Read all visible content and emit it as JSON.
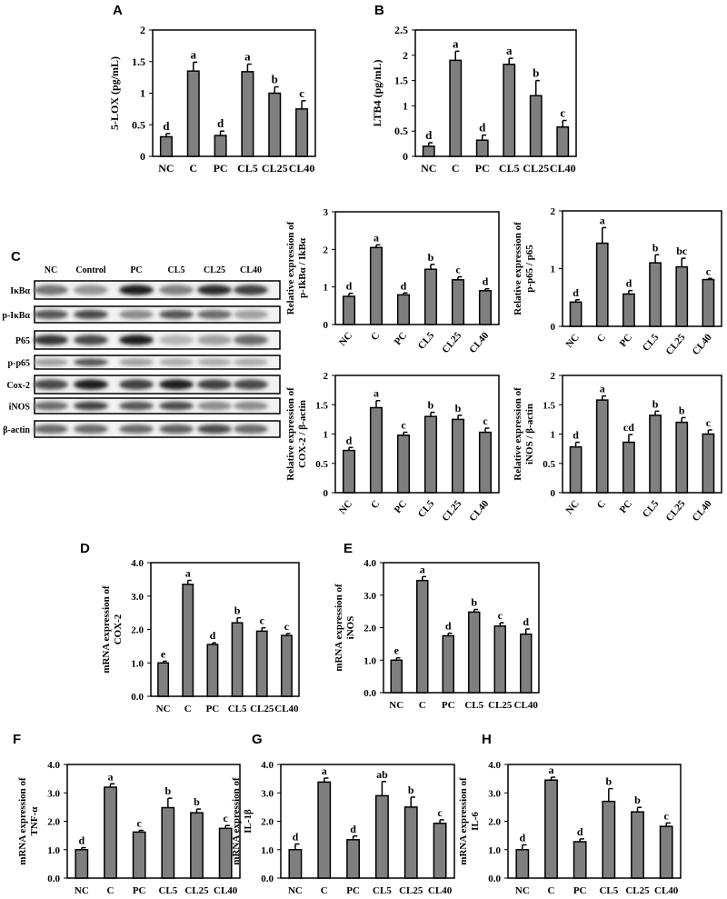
{
  "chart_data": [
    {
      "id": "A",
      "type": "bar",
      "panel_label": "A",
      "title": "",
      "ylabel": [
        "5-LOX (pg/mL)"
      ],
      "ylim": [
        0,
        2
      ],
      "yticks": [
        "0",
        "0.5",
        "1",
        "1.5",
        "2"
      ],
      "categories": [
        "NC",
        "C",
        "PC",
        "CL5",
        "CL25",
        "CL40"
      ],
      "values": [
        0.31,
        1.35,
        0.33,
        1.34,
        1.0,
        0.75
      ],
      "errors": [
        0.05,
        0.14,
        0.07,
        0.12,
        0.1,
        0.13
      ],
      "letters": [
        "d",
        "a",
        "d",
        "a",
        "b",
        "c"
      ]
    },
    {
      "id": "B",
      "type": "bar",
      "panel_label": "B",
      "title": "",
      "ylabel": [
        "LTB4 (pg/mL)"
      ],
      "ylim": [
        0,
        2.5
      ],
      "yticks": [
        "0",
        "0.5",
        "1",
        "1.5",
        "2",
        "2.5"
      ],
      "categories": [
        "NC",
        "C",
        "PC",
        "CL5",
        "CL25",
        "CL40"
      ],
      "values": [
        0.2,
        1.9,
        0.32,
        1.82,
        1.2,
        0.58
      ],
      "errors": [
        0.07,
        0.18,
        0.1,
        0.12,
        0.3,
        0.13
      ],
      "letters": [
        "d",
        "a",
        "d",
        "a",
        "b",
        "c"
      ]
    },
    {
      "id": "C1",
      "type": "bar",
      "panel_label": "",
      "ylabel": [
        "Relative expression of",
        "p-IkBα / IkBα"
      ],
      "ylim": [
        0,
        3
      ],
      "yticks": [
        "0",
        "1",
        "2",
        "3"
      ],
      "categories": [
        "NC",
        "C",
        "PC",
        "CL5",
        "CL25",
        "CL40"
      ],
      "values": [
        0.75,
        2.05,
        0.79,
        1.47,
        1.19,
        0.9
      ],
      "errors": [
        0.08,
        0.07,
        0.05,
        0.13,
        0.08,
        0.05
      ],
      "letters": [
        "d",
        "a",
        "d",
        "b",
        "c",
        "d"
      ]
    },
    {
      "id": "C2",
      "type": "bar",
      "panel_label": "",
      "ylabel": [
        "Relative expression of",
        "p-p65 / p65"
      ],
      "ylim": [
        0,
        2
      ],
      "yticks": [
        "0",
        "1",
        "2"
      ],
      "categories": [
        "NC",
        "C",
        "PC",
        "CL5",
        "CL25",
        "CL40"
      ],
      "values": [
        0.42,
        1.44,
        0.56,
        1.1,
        1.03,
        0.81
      ],
      "errors": [
        0.04,
        0.27,
        0.06,
        0.14,
        0.15,
        0.02
      ],
      "letters": [
        "d",
        "a",
        "d",
        "b",
        "bc",
        "c"
      ]
    },
    {
      "id": "C3",
      "type": "bar",
      "panel_label": "",
      "ylabel": [
        "Relative expression of",
        "COX-2 / β-actin"
      ],
      "ylim": [
        0,
        2
      ],
      "yticks": [
        "0",
        "0.5",
        "1",
        "1.5",
        "2"
      ],
      "categories": [
        "NC",
        "C",
        "PC",
        "CL5",
        "CL25",
        "CL40"
      ],
      "values": [
        0.72,
        1.45,
        0.98,
        1.3,
        1.25,
        1.03
      ],
      "errors": [
        0.05,
        0.12,
        0.05,
        0.07,
        0.07,
        0.07
      ],
      "letters": [
        "d",
        "a",
        "c",
        "b",
        "b",
        "c"
      ]
    },
    {
      "id": "C4",
      "type": "bar",
      "panel_label": "",
      "ylabel": [
        "Relative expression of",
        "iNOS / β-actin"
      ],
      "ylim": [
        0,
        2
      ],
      "yticks": [
        "0",
        "0.5",
        "1",
        "1.5",
        "2"
      ],
      "categories": [
        "NC",
        "C",
        "PC",
        "CL5",
        "CL25",
        "CL40"
      ],
      "values": [
        0.78,
        1.58,
        0.86,
        1.32,
        1.2,
        1.0
      ],
      "errors": [
        0.08,
        0.07,
        0.13,
        0.07,
        0.08,
        0.07
      ],
      "letters": [
        "d",
        "a",
        "cd",
        "b",
        "b",
        "c"
      ]
    },
    {
      "id": "D",
      "type": "bar",
      "panel_label": "D",
      "ylabel": [
        "mRNA expression of",
        "COX-2"
      ],
      "ylim": [
        0,
        4
      ],
      "yticks": [
        "0.0",
        "1.0",
        "2.0",
        "3.0",
        "4.0"
      ],
      "categories": [
        "NC",
        "C",
        "PC",
        "CL5",
        "CL25",
        "CL40"
      ],
      "values": [
        1.0,
        3.35,
        1.55,
        2.2,
        1.95,
        1.82
      ],
      "errors": [
        0.05,
        0.12,
        0.05,
        0.15,
        0.1,
        0.06
      ],
      "letters": [
        "e",
        "a",
        "d",
        "b",
        "c",
        "c"
      ]
    },
    {
      "id": "E",
      "type": "bar",
      "panel_label": "E",
      "ylabel": [
        "mRNA expression of",
        "iNOS"
      ],
      "ylim": [
        0,
        4
      ],
      "yticks": [
        "0.0",
        "1.0",
        "2.0",
        "3.0",
        "4.0"
      ],
      "categories": [
        "NC",
        "C",
        "PC",
        "CL5",
        "CL25",
        "CL40"
      ],
      "values": [
        1.0,
        3.45,
        1.75,
        2.48,
        2.05,
        1.8
      ],
      "errors": [
        0.07,
        0.12,
        0.08,
        0.08,
        0.1,
        0.16
      ],
      "letters": [
        "e",
        "a",
        "d",
        "b",
        "c",
        "d"
      ]
    },
    {
      "id": "F",
      "type": "bar",
      "panel_label": "F",
      "ylabel": [
        "mRNA expression of",
        "TNF-α"
      ],
      "ylim": [
        0,
        4
      ],
      "yticks": [
        "0.0",
        "1.0",
        "2.0",
        "3.0",
        "4.0"
      ],
      "categories": [
        "NC",
        "C",
        "PC",
        "CL5",
        "CL25",
        "CL40"
      ],
      "values": [
        1.0,
        3.2,
        1.62,
        2.48,
        2.3,
        1.75
      ],
      "errors": [
        0.07,
        0.12,
        0.06,
        0.33,
        0.13,
        0.1
      ],
      "letters": [
        "d",
        "a",
        "c",
        "b",
        "b",
        "c"
      ]
    },
    {
      "id": "G",
      "type": "bar",
      "panel_label": "G",
      "ylabel": [
        "mRNA expression of",
        "IL-1β"
      ],
      "ylim": [
        0,
        4
      ],
      "yticks": [
        "0.0",
        "1.0",
        "2.0",
        "3.0",
        "4.0"
      ],
      "categories": [
        "NC",
        "C",
        "PC",
        "CL5",
        "CL25",
        "CL40"
      ],
      "values": [
        1.0,
        3.38,
        1.35,
        2.9,
        2.5,
        1.93
      ],
      "errors": [
        0.2,
        0.14,
        0.13,
        0.5,
        0.35,
        0.12
      ],
      "letters": [
        "d",
        "a",
        "d",
        "ab",
        "b",
        "c"
      ]
    },
    {
      "id": "H",
      "type": "bar",
      "panel_label": "H",
      "ylabel": [
        "mRNA expression of",
        "IL-6"
      ],
      "ylim": [
        0,
        4
      ],
      "yticks": [
        "0.0",
        "1.0",
        "2.0",
        "3.0",
        "4.0"
      ],
      "categories": [
        "NC",
        "C",
        "PC",
        "CL5",
        "CL25",
        "CL40"
      ],
      "values": [
        1.0,
        3.45,
        1.28,
        2.7,
        2.33,
        1.82
      ],
      "errors": [
        0.17,
        0.1,
        0.1,
        0.45,
        0.16,
        0.12
      ],
      "letters": [
        "d",
        "a",
        "d",
        "b",
        "b",
        "c"
      ]
    }
  ],
  "western_blot": {
    "panel_label": "C",
    "lanes": [
      "NC",
      "Control",
      "PC",
      "CL5",
      "CL25",
      "CL40"
    ],
    "rows": [
      {
        "label": "IκBα",
        "intensity": [
          0.55,
          0.4,
          0.95,
          0.5,
          0.9,
          0.8
        ]
      },
      {
        "label": "p-IκBα",
        "intensity": [
          0.7,
          0.75,
          0.45,
          0.7,
          0.6,
          0.35
        ]
      },
      {
        "label": "P65",
        "intensity": [
          0.85,
          0.75,
          0.95,
          0.25,
          0.35,
          0.6
        ]
      },
      {
        "label": "p-p65",
        "intensity": [
          0.35,
          0.7,
          0.35,
          0.3,
          0.3,
          0.3
        ]
      },
      {
        "label": "Cox-2",
        "intensity": [
          0.75,
          0.95,
          0.8,
          0.95,
          0.8,
          0.75
        ]
      },
      {
        "label": "iNOS",
        "intensity": [
          0.6,
          0.8,
          0.7,
          0.75,
          0.45,
          0.45
        ]
      },
      {
        "label": "β-actin",
        "intensity": [
          0.6,
          0.6,
          0.6,
          0.65,
          0.75,
          0.6
        ]
      }
    ]
  },
  "colors": {
    "bar": "#7f7f7f",
    "axis": "#000000"
  }
}
